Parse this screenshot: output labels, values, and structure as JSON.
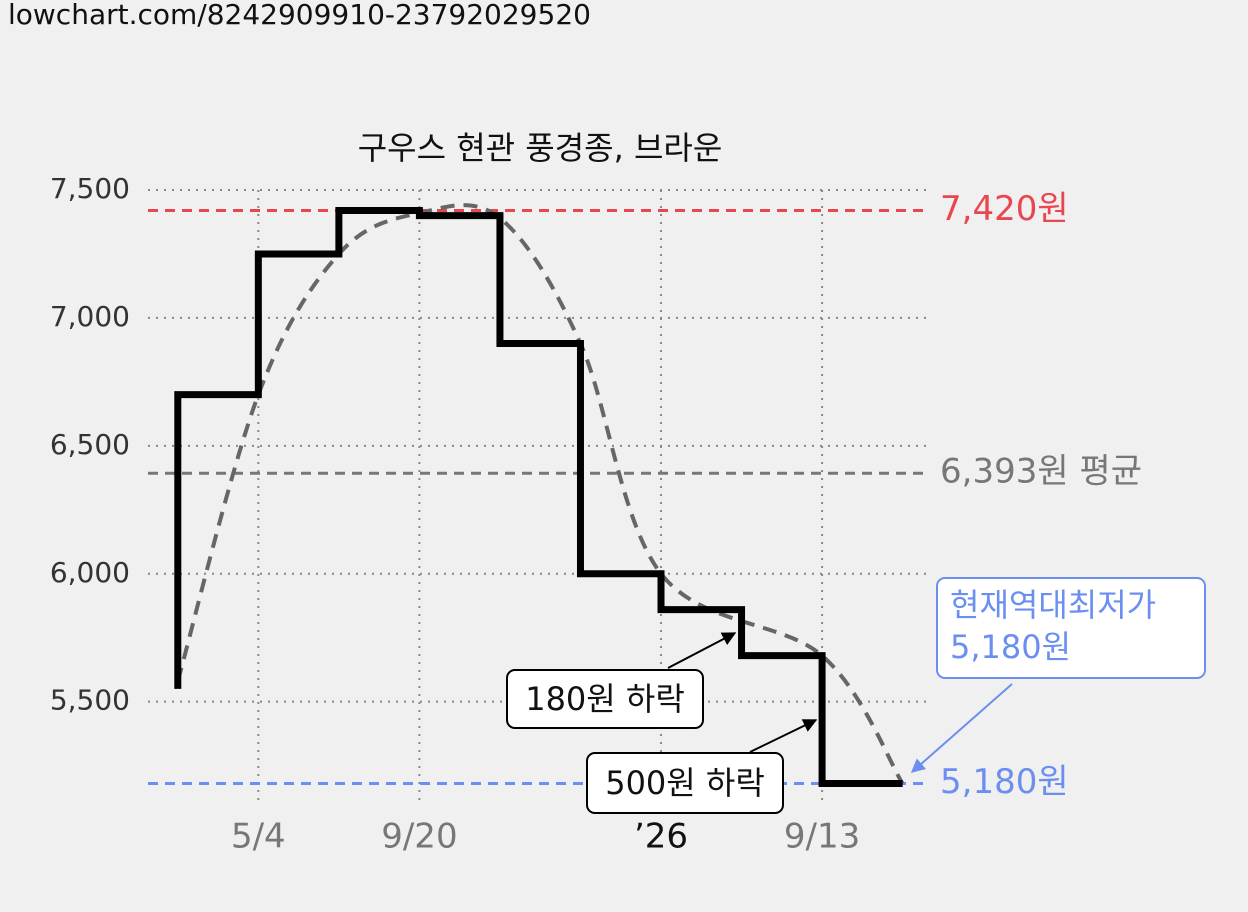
{
  "header": "lowchart.com/8242909910-23792029520",
  "chart_data": {
    "type": "line",
    "title": "구우스 현관 풍경종, 브라운",
    "step": "post",
    "xlim": [
      -0.37,
      9.34
    ],
    "xticks": [
      {
        "value": 1,
        "label": "5/4"
      },
      {
        "value": 3,
        "label": "9/20"
      },
      {
        "value": 6,
        "label": "’26"
      },
      {
        "value": 8,
        "label": "9/13"
      }
    ],
    "ylim": [
      5100,
      7500
    ],
    "yticks": [
      {
        "value": 5500,
        "label": "5,500"
      },
      {
        "value": 6000,
        "label": "6,000"
      },
      {
        "value": 6500,
        "label": "6,500"
      },
      {
        "value": 7000,
        "label": "7,000"
      },
      {
        "value": 7500,
        "label": "7,500"
      }
    ],
    "grid": true,
    "series": [
      {
        "color": "#000000",
        "x": [
          0,
          0,
          1,
          2,
          3,
          4,
          5,
          6,
          7,
          8,
          9
        ],
        "values": [
          5550,
          6700,
          7250,
          7420,
          7400,
          6900,
          6000,
          5860,
          5680,
          5180,
          5180
        ]
      },
      {
        "color": "#666666",
        "dashed": true,
        "smooth": true,
        "x": [
          0,
          1,
          2,
          3,
          4,
          5,
          6,
          8,
          9
        ],
        "values": [
          5580,
          6700,
          7250,
          7410,
          7390,
          6900,
          6000,
          5680,
          5180
        ]
      }
    ],
    "reference_lines": [
      {
        "value": 7420,
        "label": "7,420원",
        "color": "#e8474f"
      },
      {
        "value": 6393,
        "label": "6,393원 평균",
        "color": "#777777"
      },
      {
        "value": 5180,
        "label": "5,180원",
        "color": "#6a8ff0"
      }
    ],
    "annotations": [
      {
        "text": "180원 하락"
      },
      {
        "text": "500원 하락"
      }
    ],
    "callout": {
      "lines": [
        "현재역대최저가",
        "5,180원"
      ],
      "color": "#6a8ff0"
    }
  }
}
